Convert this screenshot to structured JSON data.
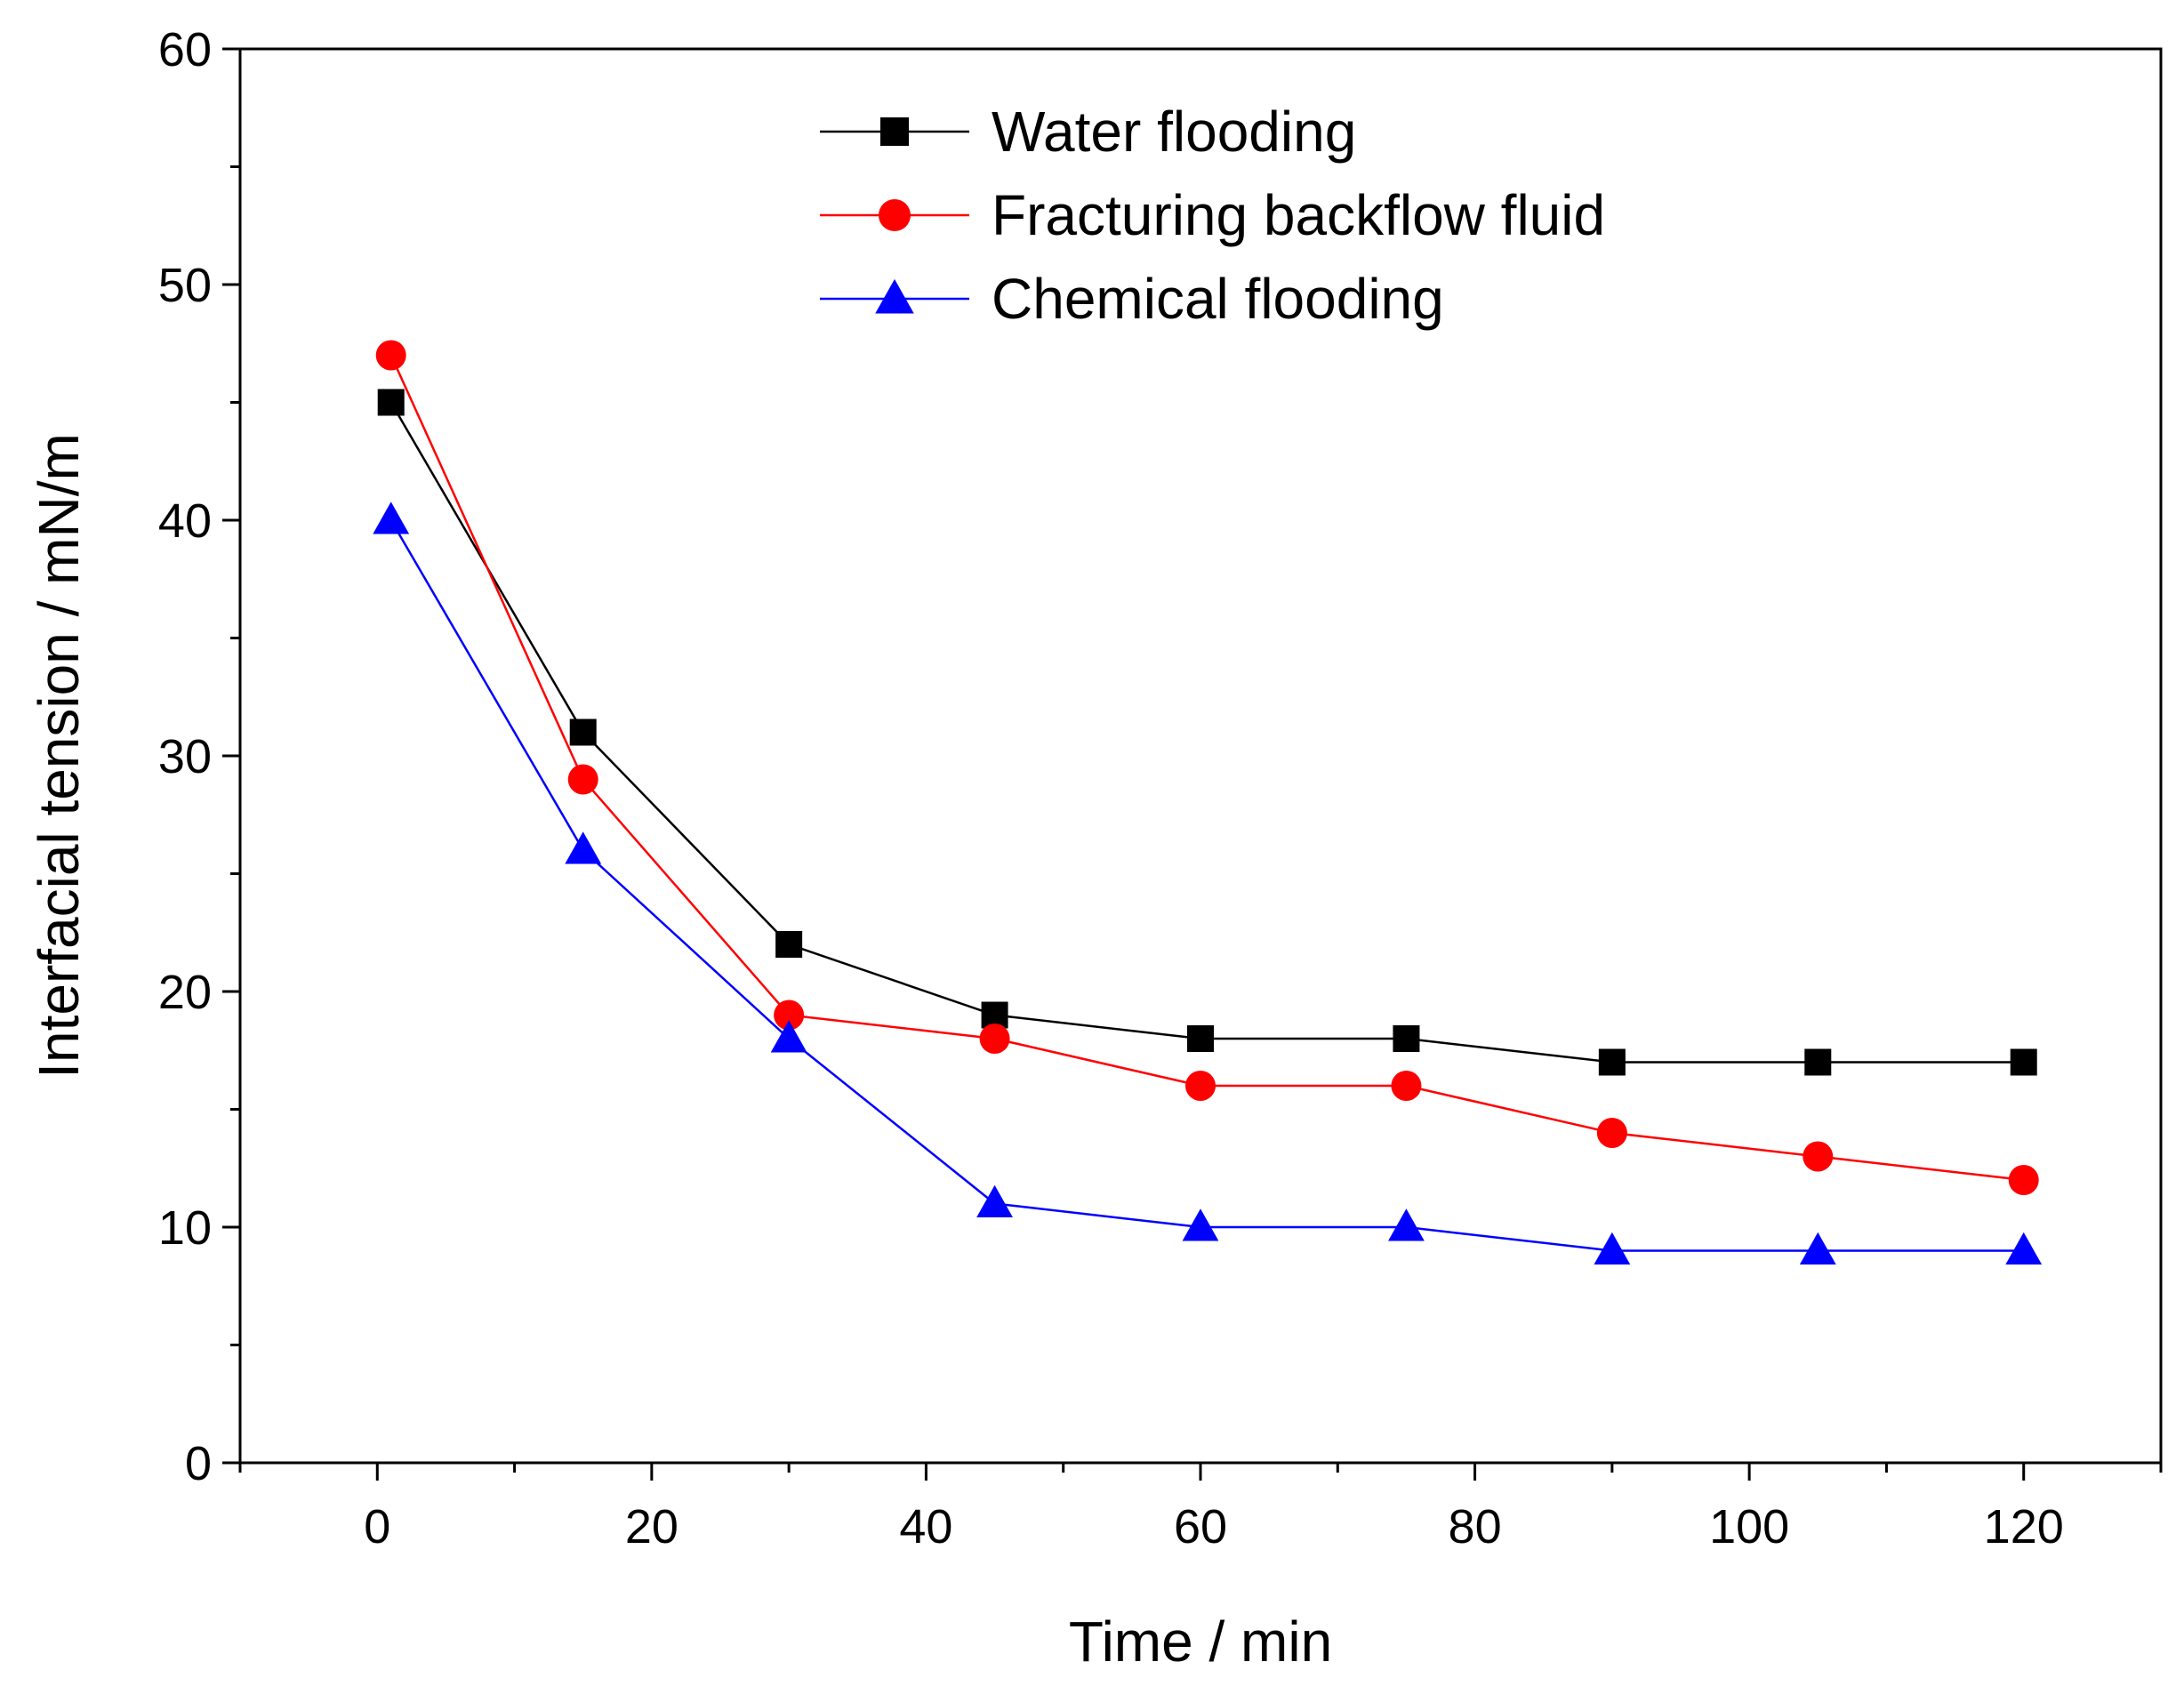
{
  "chart_data": {
    "type": "line",
    "title": "",
    "xlabel": "Time / min",
    "ylabel": "Interfacial tension / mN/m",
    "xlim": [
      -10,
      130
    ],
    "ylim": [
      0,
      60
    ],
    "x_ticks": [
      0,
      20,
      40,
      60,
      80,
      100,
      120
    ],
    "y_ticks": [
      0,
      10,
      20,
      30,
      40,
      50,
      60
    ],
    "x_tick_labels": [
      "0",
      "20",
      "40",
      "60",
      "80",
      "100",
      "120"
    ],
    "y_tick_labels": [
      "0",
      "10",
      "20",
      "30",
      "40",
      "50",
      "60"
    ],
    "grid": false,
    "legend_position": "top-center",
    "series": [
      {
        "name": "Water flooding",
        "color": "#000000",
        "marker": "square",
        "x": [
          1,
          15,
          30,
          45,
          60,
          75,
          90,
          105,
          120
        ],
        "values": [
          45,
          31,
          22,
          19,
          18,
          18,
          17,
          17,
          17
        ]
      },
      {
        "name": "Fracturing backflow fluid",
        "color": "#ff0000",
        "marker": "circle",
        "x": [
          1,
          15,
          30,
          45,
          60,
          75,
          90,
          105,
          120
        ],
        "values": [
          47,
          29,
          19,
          18,
          16,
          16,
          14,
          13,
          12
        ]
      },
      {
        "name": "Chemical flooding",
        "color": "#0000ff",
        "marker": "triangle",
        "x": [
          1,
          15,
          30,
          45,
          60,
          75,
          90,
          105,
          120
        ],
        "values": [
          40,
          26,
          18,
          11,
          10,
          10,
          9,
          9,
          9
        ]
      }
    ]
  }
}
